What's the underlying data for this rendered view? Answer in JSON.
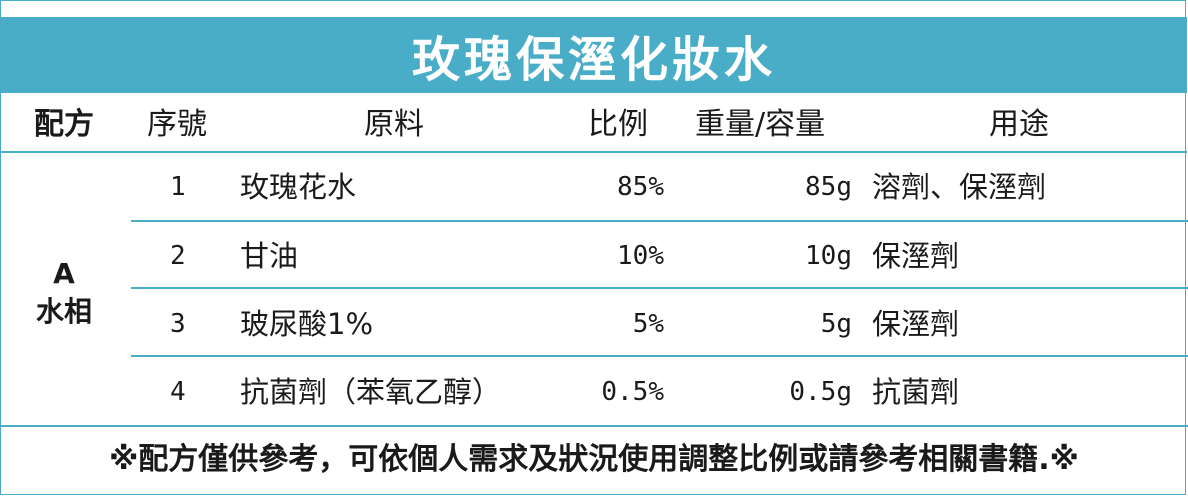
{
  "title": "玫瑰保溼化妝水",
  "headers": {
    "formula": "配方",
    "seq": "序號",
    "material": "原料",
    "ratio": "比例",
    "weight": "重量/容量",
    "usage": "用途"
  },
  "group": {
    "line1": "A",
    "line2": "水相"
  },
  "rows": [
    {
      "seq": "1",
      "material": "玫瑰花水",
      "ratio": "85%",
      "weight": "85g",
      "usage": "溶劑、保溼劑"
    },
    {
      "seq": "2",
      "material": "甘油",
      "ratio": "10%",
      "weight": "10g",
      "usage": "保溼劑"
    },
    {
      "seq": "3",
      "material": "玻尿酸1%",
      "ratio": "5%",
      "weight": "5g",
      "usage": "保溼劑"
    },
    {
      "seq": "4",
      "material": "抗菌劑（苯氧乙醇）",
      "ratio": "0.5%",
      "weight": "0.5g",
      "usage": "抗菌劑"
    }
  ],
  "note": "※配方僅供參考，可依個人需求及狀況使用調整比例或請參考相關書籍.※",
  "colors": {
    "accent": "#4aadc8",
    "text": "#1a1a1a"
  }
}
